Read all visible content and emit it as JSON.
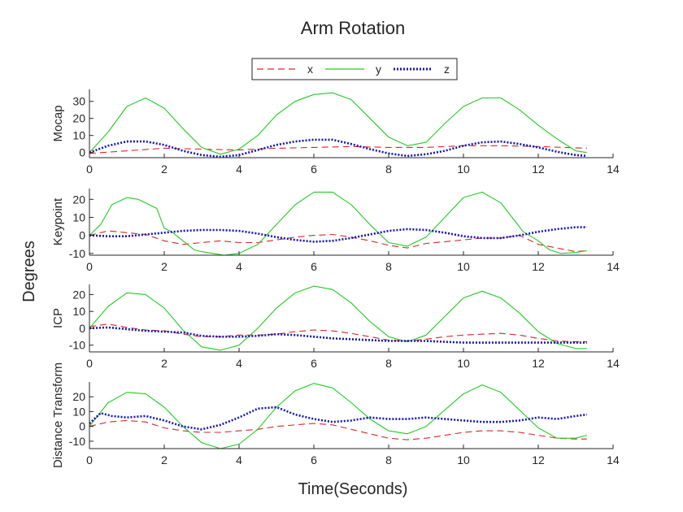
{
  "chart_data": {
    "type": "line",
    "title": "Arm Rotation",
    "xlabel": "Time(Seconds)",
    "ylabel": "Degrees",
    "legend": {
      "placement": "top-center",
      "entries": [
        {
          "name": "x",
          "color": "#d62728",
          "style": "dashed"
        },
        {
          "name": "y",
          "color": "#22cc22",
          "style": "solid"
        },
        {
          "name": "z",
          "color": "#1414b4",
          "style": "dotted"
        }
      ]
    },
    "xlim": [
      0,
      14
    ],
    "xticks": [
      "0",
      "2",
      "4",
      "6",
      "8",
      "10",
      "12",
      "14"
    ],
    "subplots": [
      {
        "ylabel": "Mocap",
        "ylim": [
          -3,
          37
        ],
        "yticks": [
          "0",
          "10",
          "20",
          "30"
        ],
        "series": [
          {
            "name": "x",
            "x": [
              0,
              1,
              2,
              3,
              4,
              5,
              6,
              7,
              8,
              9,
              10,
              11,
              12,
              13.3
            ],
            "y": [
              -0.5,
              1,
              2.5,
              2,
              1.5,
              2.5,
              3,
              3.5,
              3,
              3,
              4,
              4,
              3.5,
              2.5
            ]
          },
          {
            "name": "y",
            "x": [
              0,
              0.5,
              1,
              1.5,
              2,
              2.5,
              3,
              3.5,
              4,
              4.5,
              5,
              5.5,
              6,
              6.5,
              7,
              7.5,
              8,
              8.5,
              9,
              9.5,
              10,
              10.5,
              11,
              11.5,
              12,
              12.5,
              13,
              13.3
            ],
            "y": [
              0,
              12,
              27,
              32,
              26,
              14,
              3,
              -1,
              2,
              10,
              22,
              30,
              34,
              35,
              31,
              20,
              9,
              4,
              6,
              17,
              27,
              32,
              32,
              25,
              16,
              8,
              1,
              0
            ]
          },
          {
            "name": "z",
            "x": [
              0,
              0.5,
              1,
              1.5,
              2,
              2.5,
              3,
              3.5,
              4,
              4.5,
              5,
              5.5,
              6,
              6.5,
              7,
              7.5,
              8,
              8.5,
              9,
              9.5,
              10,
              10.5,
              11,
              11.5,
              12,
              12.5,
              13,
              13.3
            ],
            "y": [
              0,
              4,
              6.5,
              6.5,
              4.5,
              1,
              -1.5,
              -2.5,
              -1.5,
              1.5,
              4.5,
              6.5,
              7.5,
              7.5,
              5,
              2,
              -0.5,
              -2,
              -1,
              1,
              4,
              6,
              6.5,
              5,
              3,
              0.5,
              -1.5,
              -2
            ]
          }
        ]
      },
      {
        "ylabel": "Keypoint",
        "ylim": [
          -11,
          26
        ],
        "yticks": [
          "-10",
          "0",
          "10",
          "20"
        ],
        "series": [
          {
            "name": "x",
            "x": [
              0,
              0.5,
              1,
              1.5,
              2,
              2.5,
              3,
              3.5,
              4,
              4.5,
              5,
              5.5,
              6,
              6.5,
              7,
              7.5,
              8,
              8.5,
              9,
              9.5,
              10,
              10.5,
              11,
              11.5,
              12,
              12.5,
              13,
              13.3
            ],
            "y": [
              0,
              2.5,
              1.5,
              0.5,
              -3,
              -5,
              -4,
              -3,
              -4,
              -4,
              -2.5,
              -1,
              0,
              0.5,
              -1,
              -3,
              -5.5,
              -7,
              -4.5,
              -3.5,
              -2.5,
              -1.5,
              -1.5,
              0,
              -5,
              -7,
              -9,
              -8.5
            ]
          },
          {
            "name": "y",
            "x": [
              0,
              0.3,
              0.6,
              1,
              1.3,
              1.6,
              1.8,
              2,
              2.2,
              2.5,
              2.8,
              3,
              3.3,
              3.6,
              4,
              4.5,
              5,
              5.5,
              6,
              6.5,
              7,
              7.5,
              8,
              8.5,
              9,
              9.5,
              10,
              10.5,
              11,
              11.3,
              11.6,
              12,
              12.3,
              12.6,
              13,
              13.3
            ],
            "y": [
              0,
              6,
              17,
              21,
              20,
              17,
              15,
              4,
              2,
              -3,
              -8,
              -9,
              -10,
              -11,
              -10,
              -5,
              6,
              17,
              24,
              24,
              17,
              6,
              -4,
              -6,
              -1,
              10,
              21,
              24,
              18,
              10,
              2,
              -3,
              -8,
              -10,
              -9.5,
              -8.5
            ]
          },
          {
            "name": "z",
            "x": [
              0,
              0.5,
              1,
              1.5,
              2,
              2.5,
              3,
              3.5,
              4,
              4.5,
              5,
              5.5,
              6,
              6.5,
              7,
              7.5,
              8,
              8.5,
              9,
              9.5,
              10,
              10.5,
              11,
              11.5,
              12,
              12.5,
              13,
              13.3
            ],
            "y": [
              0,
              -0.5,
              -0.5,
              0.5,
              1.5,
              2.5,
              3,
              3,
              2.5,
              1,
              -1,
              -2.5,
              -3.5,
              -3,
              -1.5,
              0.5,
              2.5,
              3.5,
              3,
              1.5,
              -0.5,
              -1.5,
              -1.5,
              0,
              2,
              3.5,
              4.5,
              4.5
            ]
          }
        ]
      },
      {
        "ylabel": "ICP",
        "ylim": [
          -14,
          26
        ],
        "yticks": [
          "-10",
          "0",
          "10",
          "20"
        ],
        "series": [
          {
            "name": "x",
            "x": [
              0,
              0.5,
              1,
              1.5,
              2,
              2.5,
              3,
              3.5,
              4,
              4.5,
              5,
              5.5,
              6,
              6.5,
              7,
              7.5,
              8,
              8.5,
              9,
              9.5,
              10,
              10.5,
              11,
              11.5,
              12,
              12.5,
              13,
              13.3
            ],
            "y": [
              1,
              2.5,
              0.5,
              -1,
              -1.5,
              -3.5,
              -5,
              -5,
              -4,
              -4,
              -3.5,
              -2,
              -1,
              -1.5,
              -3,
              -5,
              -7,
              -7.5,
              -6.5,
              -5,
              -4,
              -3.5,
              -3,
              -4,
              -6,
              -7.5,
              -8,
              -8
            ]
          },
          {
            "name": "y",
            "x": [
              0,
              0.5,
              1,
              1.5,
              2,
              2.5,
              3,
              3.5,
              4,
              4.5,
              5,
              5.5,
              6,
              6.5,
              7,
              7.5,
              8,
              8.5,
              9,
              9.5,
              10,
              10.5,
              11,
              11.5,
              12,
              12.5,
              13,
              13.3
            ],
            "y": [
              0,
              13,
              21,
              20,
              12,
              -1,
              -11,
              -13,
              -10,
              0,
              12,
              21,
              25,
              23,
              15,
              4,
              -5,
              -8,
              -4,
              7,
              18,
              22,
              18,
              9,
              -2,
              -9,
              -12,
              -12
            ]
          },
          {
            "name": "z",
            "x": [
              0,
              0.5,
              1,
              1.5,
              2,
              2.5,
              3,
              3.5,
              4,
              4.5,
              5,
              5.5,
              6,
              6.5,
              7,
              7.5,
              8,
              8.5,
              9,
              9.5,
              10,
              10.5,
              11,
              11.5,
              12,
              12.5,
              13,
              13.3
            ],
            "y": [
              0,
              0.5,
              -0.5,
              -1.5,
              -2,
              -2.5,
              -4.5,
              -5,
              -5,
              -4.5,
              -3.5,
              -4,
              -5,
              -6,
              -6.5,
              -7,
              -7.5,
              -7.5,
              -7.5,
              -8,
              -8.5,
              -8.5,
              -8.5,
              -8.5,
              -8.5,
              -8.5,
              -8.5,
              -8.5
            ]
          }
        ]
      },
      {
        "ylabel": "Distance Transform",
        "ylim": [
          -15,
          30
        ],
        "yticks": [
          "-10",
          "0",
          "10",
          "20"
        ],
        "series": [
          {
            "name": "x",
            "x": [
              0,
              0.5,
              1,
              1.5,
              2,
              2.5,
              3,
              3.5,
              4,
              4.5,
              5,
              5.5,
              6,
              6.5,
              7,
              7.5,
              8,
              8.5,
              9,
              9.5,
              10,
              10.5,
              11,
              11.5,
              12,
              12.5,
              13,
              13.3
            ],
            "y": [
              0,
              3,
              4,
              3,
              -1,
              -3,
              -4,
              -4,
              -3,
              -2,
              0,
              1,
              2,
              1,
              -2,
              -5,
              -8,
              -9,
              -8,
              -6,
              -4,
              -3,
              -3,
              -4,
              -6,
              -8,
              -8.5,
              -8.5
            ]
          },
          {
            "name": "y",
            "x": [
              0,
              0.5,
              1,
              1.5,
              2,
              2.5,
              3,
              3.5,
              4,
              4.5,
              5,
              5.5,
              6,
              6.5,
              7,
              7.5,
              8,
              8.5,
              9,
              9.5,
              10,
              10.5,
              11,
              11.5,
              12,
              12.5,
              13,
              13.3
            ],
            "y": [
              0,
              16,
              23,
              22,
              13,
              0,
              -11,
              -15,
              -12,
              -2,
              13,
              24,
              29,
              26,
              16,
              5,
              -3,
              -5,
              0,
              11,
              22,
              28,
              23,
              11,
              -1,
              -8,
              -8,
              -6
            ]
          },
          {
            "name": "z",
            "x": [
              0,
              0.3,
              0.6,
              1,
              1.5,
              2,
              2.5,
              3,
              3.5,
              4,
              4.5,
              5,
              5.5,
              6,
              6.5,
              7,
              7.5,
              8,
              8.5,
              9,
              9.5,
              10,
              10.5,
              11,
              11.5,
              12,
              12.5,
              13,
              13.3
            ],
            "y": [
              2,
              9,
              7,
              6,
              7,
              4,
              0,
              -2,
              1,
              6,
              12,
              13,
              8,
              5,
              3,
              4,
              6,
              5,
              5,
              6,
              5,
              4,
              3,
              3,
              4,
              6,
              5,
              7,
              8
            ]
          }
        ]
      }
    ]
  }
}
